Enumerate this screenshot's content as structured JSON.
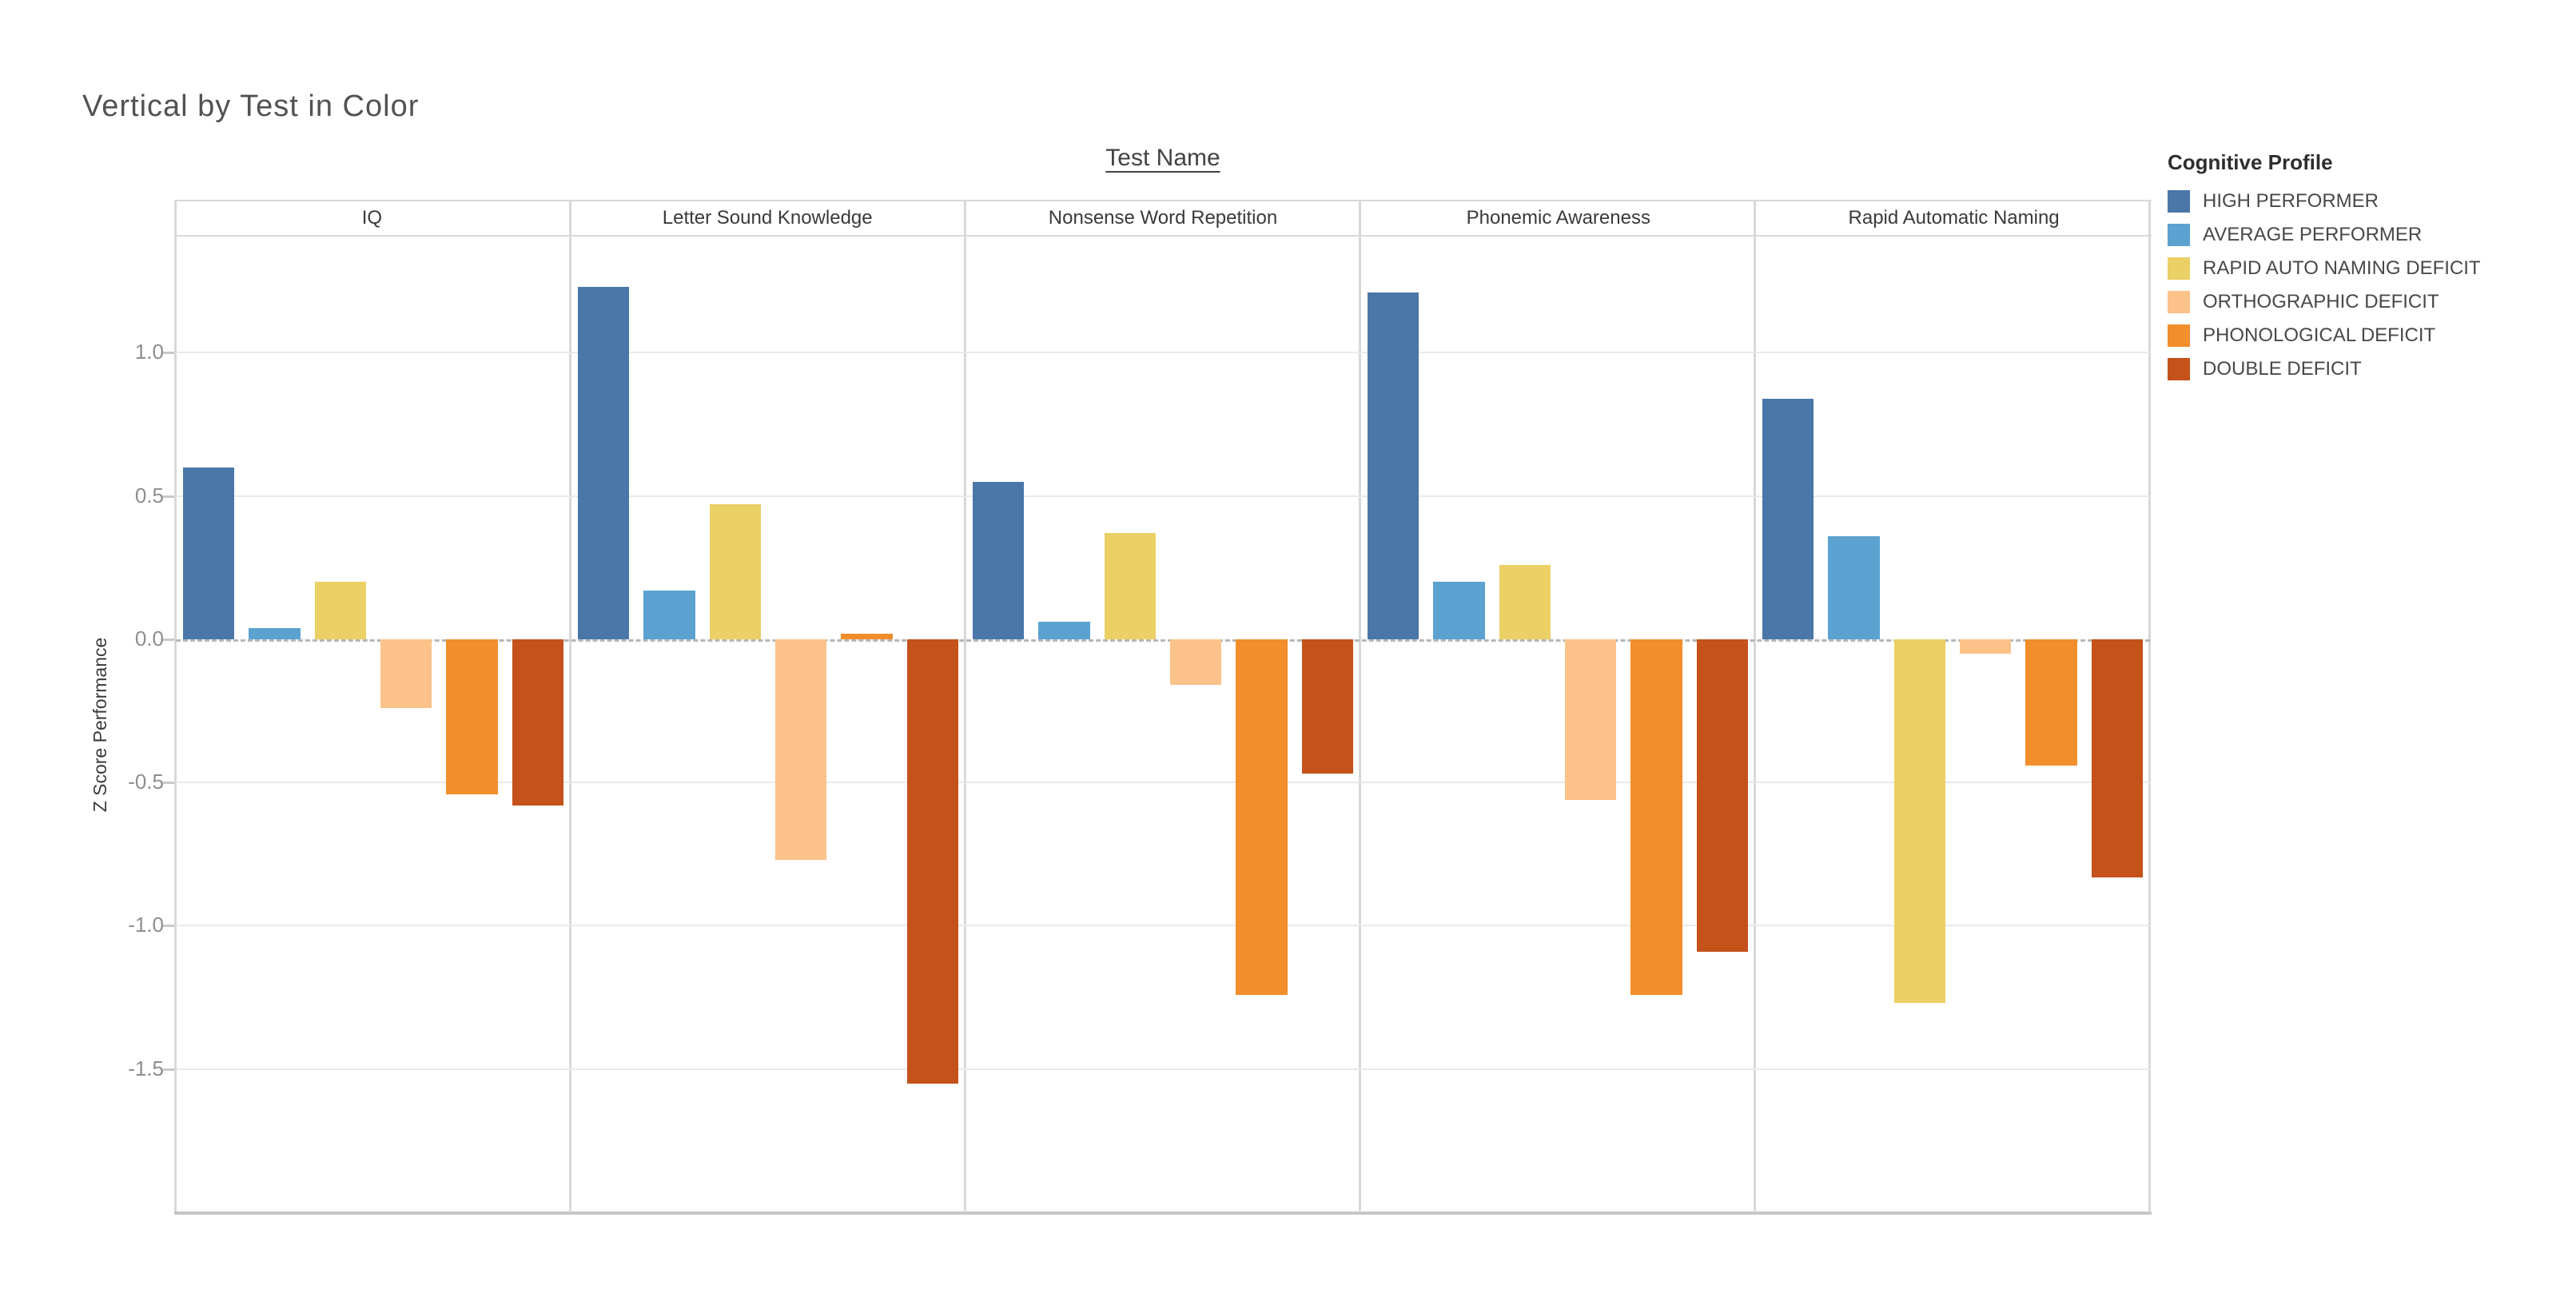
{
  "title": "Vertical by Test in Color",
  "column_field": {
    "label": "Test Name"
  },
  "y_axis": {
    "label": "Z Score Performance",
    "ticks": [
      {
        "label": "1.0",
        "value": 1.0
      },
      {
        "label": "0.5",
        "value": 0.5
      },
      {
        "label": "0.0",
        "value": 0.0
      },
      {
        "label": "-0.5",
        "value": -0.5
      },
      {
        "label": "-1.0",
        "value": -1.0
      },
      {
        "label": "-1.5",
        "value": -1.5
      }
    ]
  },
  "legend": {
    "title": "Cognitive Profile",
    "items": [
      {
        "label": "HIGH PERFORMER"
      },
      {
        "label": "AVERAGE PERFORMER"
      },
      {
        "label": "RAPID AUTO NAMING DEFICIT"
      },
      {
        "label": "ORTHOGRAPHIC DEFICIT"
      },
      {
        "label": "PHONOLOGICAL DEFICIT"
      },
      {
        "label": "DOUBLE DEFICIT"
      }
    ]
  },
  "colors": {
    "gridline": "#e9e9e9",
    "zero_line": "#b7b7b7",
    "panel_border": "#d8d8d8",
    "bottom_border": "#c6c6c6",
    "tick_text": "#8e8e8e",
    "header_text": "#3a3a3a",
    "title_text": "#525252"
  },
  "chart_data": {
    "type": "bar",
    "title": "Vertical by Test in Color",
    "xlabel": "Test Name",
    "ylabel": "Z Score Performance",
    "ylim": [
      -2.0,
      1.4
    ],
    "yticks": [
      1.0,
      0.5,
      0.0,
      -0.5,
      -1.0,
      -1.5
    ],
    "grid": true,
    "zero_line": "dashed",
    "legend_position": "top-right",
    "categories": [
      "IQ",
      "Letter Sound Knowledge",
      "Nonsense Word Repetition",
      "Phonemic Awareness",
      "Rapid Automatic Naming"
    ],
    "series": [
      {
        "name": "HIGH PERFORMER",
        "color": "#4a76a8",
        "values": [
          0.6,
          1.23,
          0.55,
          1.21,
          0.84
        ]
      },
      {
        "name": "AVERAGE PERFORMER",
        "color": "#5ba2d0",
        "values": [
          0.04,
          0.17,
          0.06,
          0.2,
          0.36
        ]
      },
      {
        "name": "RAPID AUTO NAMING DEFICIT",
        "color": "#ead065",
        "values": [
          0.2,
          0.47,
          0.37,
          0.26,
          -1.27
        ]
      },
      {
        "name": "ORTHOGRAPHIC DEFICIT",
        "color": "#fbc289",
        "values": [
          -0.24,
          -0.77,
          -0.16,
          -0.56,
          -0.05
        ]
      },
      {
        "name": "PHONOLOGICAL DEFICIT",
        "color": "#f28e2b",
        "values": [
          -0.54,
          0.02,
          -1.24,
          -1.24,
          -0.44
        ]
      },
      {
        "name": "DOUBLE DEFICIT",
        "color": "#c4521a",
        "values": [
          -0.58,
          -1.55,
          -0.47,
          -1.09,
          -0.83
        ]
      }
    ]
  }
}
